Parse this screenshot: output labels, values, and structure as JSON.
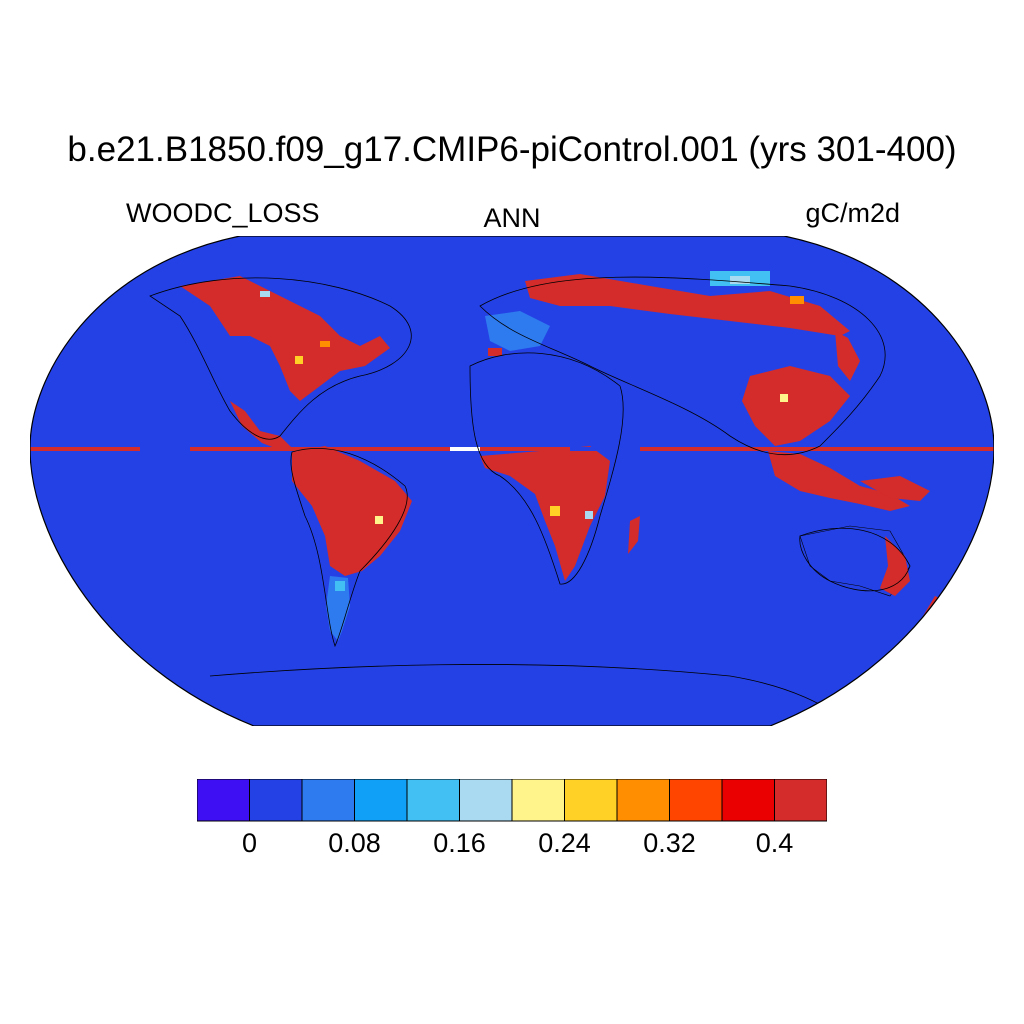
{
  "title": "b.e21.B1850.f09_g17.CMIP6-piControl.001 (yrs 301-400)",
  "left_label": "WOODC_LOSS",
  "center_label": "ANN",
  "right_label": "gC/m2d",
  "colors": {
    "ocean": "#2441e6",
    "high": "#d42b2b"
  },
  "colorbar": {
    "colors": [
      "#3e0ff2",
      "#2441e6",
      "#2e7bef",
      "#11a0f7",
      "#42bff3",
      "#a9daf1",
      "#fff48c",
      "#ffd126",
      "#ff8e00",
      "#ff4500",
      "#ea0000",
      "#d42b2b"
    ],
    "tick_labels": [
      "0",
      "0.08",
      "0.16",
      "0.24",
      "0.32",
      "0.4"
    ],
    "tick_values": [
      0,
      0.08,
      0.16,
      0.24,
      0.32,
      0.4
    ]
  }
}
